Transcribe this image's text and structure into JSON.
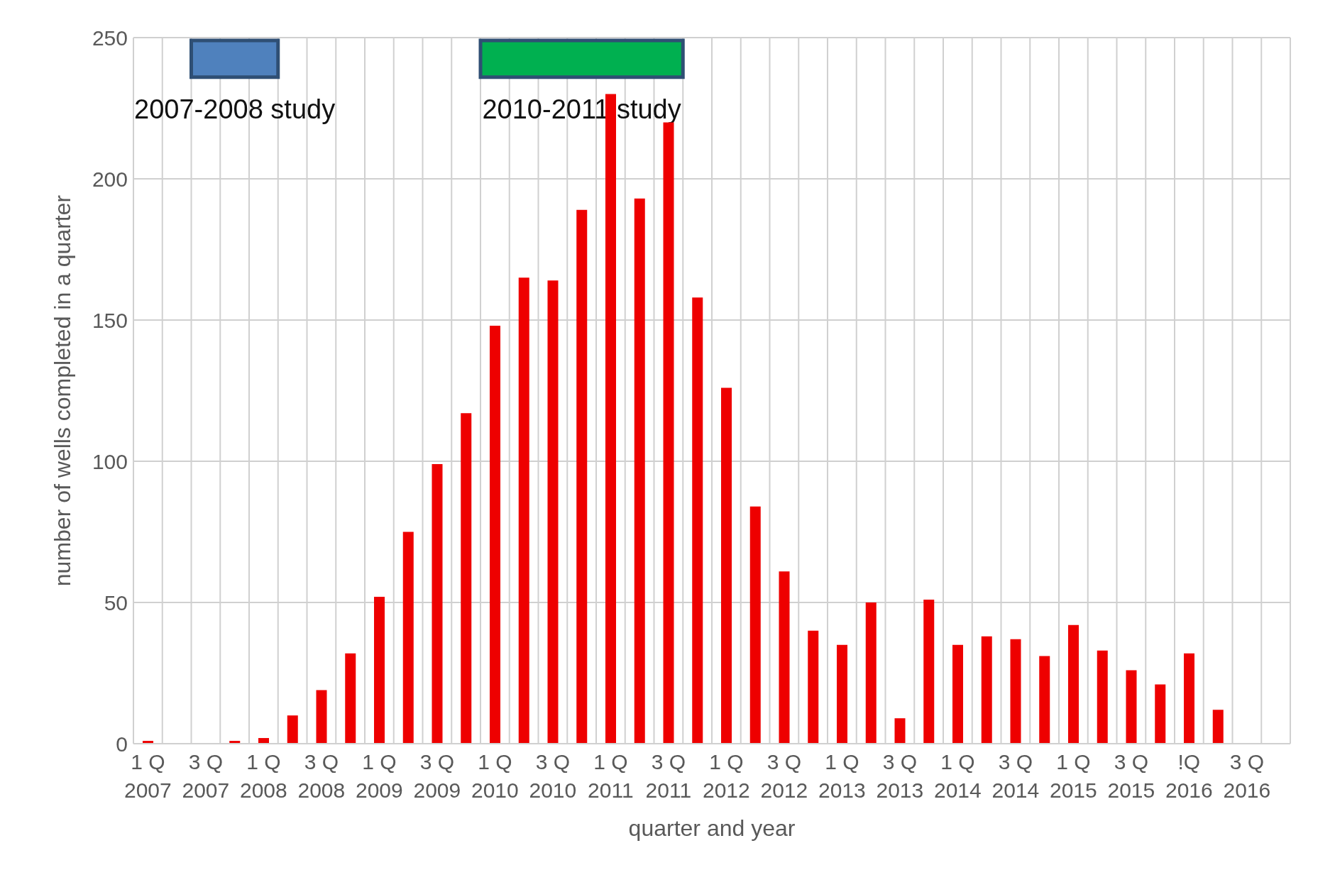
{
  "chart_data": {
    "type": "bar",
    "xlabel": "quarter and year",
    "ylabel": "number of wells completed in a quarter",
    "categories": [
      "1 Q 2007",
      null,
      "3 Q 2007",
      null,
      "1 Q 2008",
      null,
      "3 Q 2008",
      null,
      "1 Q 2009",
      null,
      "3 Q 2009",
      null,
      "1 Q 2010",
      null,
      "3 Q 2010",
      null,
      "1 Q 2011",
      null,
      "3 Q 2011",
      null,
      "1 Q 2012",
      null,
      "3 Q 2012",
      null,
      "1 Q 2013",
      null,
      "3 Q 2013",
      null,
      "1 Q 2014",
      null,
      "3 Q 2014",
      null,
      "1 Q 2015",
      null,
      "3 Q 2015",
      null,
      "!Q 2016",
      null,
      "3 Q 2016",
      null
    ],
    "values": [
      1,
      0,
      0,
      1,
      2,
      10,
      19,
      32,
      52,
      75,
      99,
      117,
      148,
      165,
      164,
      189,
      230,
      193,
      220,
      158,
      126,
      84,
      61,
      40,
      35,
      50,
      9,
      51,
      35,
      38,
      37,
      31,
      42,
      33,
      26,
      21,
      32,
      12,
      0,
      0
    ],
    "color": "#ee0000",
    "ylim": [
      0,
      250
    ],
    "yticks": [
      0,
      50,
      100,
      150,
      200,
      250
    ],
    "grid": true,
    "bands": [
      {
        "axis": "x",
        "from": "3 Q 2007",
        "to": "1 Q 2008",
        "label": "2007-2008 study",
        "color": "#4f81bd"
      },
      {
        "axis": "x",
        "from": "1 Q 2010",
        "to": "3 Q 2011",
        "label": "2010-2011 study",
        "color": "#00b050"
      }
    ]
  }
}
